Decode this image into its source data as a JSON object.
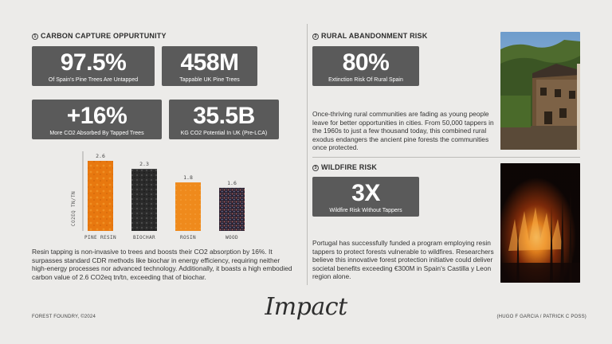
{
  "sections": {
    "carbon": {
      "number": "1",
      "title": "CARBON CAPTURE OPPURTUNITY"
    },
    "rural": {
      "number": "2",
      "title": "RURAL ABANDONMENT RISK"
    },
    "wildfire": {
      "number": "3",
      "title": "WILDFIRE RISK"
    }
  },
  "stats": {
    "untapped": {
      "value": "97.5%",
      "label": "Of Spain's Pine Trees Are Untapped"
    },
    "tappable": {
      "value": "458M",
      "label": "Tappable UK Pine Trees"
    },
    "co2_absorbed": {
      "value": "+16%",
      "label": "More CO2 Absorbed By Tapped Trees"
    },
    "co2_potential": {
      "value": "35.5B",
      "label": "KG CO2 Potential In UK (Pre-LCA)"
    },
    "extinction": {
      "value": "80%",
      "label": "Extinction Risk Of Rural Spain"
    },
    "wildfire": {
      "value": "3X",
      "label": "Wildfire Risk Without Tappers"
    }
  },
  "chart_data": {
    "type": "bar",
    "categories": [
      "PINE RESIN",
      "BIOCHAR",
      "ROSIN",
      "WOOD"
    ],
    "values": [
      2.6,
      2.3,
      1.8,
      1.6
    ],
    "value_labels": [
      "2.6",
      "2.3",
      "1.8",
      "1.6"
    ],
    "ylabel": "CO2EQ TN/TN",
    "xlabel": "",
    "grid": false,
    "colors": [
      "#e8780f",
      "#2d2d2d",
      "#ef8a1c",
      "#3a2a3a"
    ]
  },
  "paragraphs": {
    "carbon": "Resin tapping is non-invasive to trees and boosts their CO2 absorption by 16%. It surpasses standard CDR methods like biochar in energy efficiency, requiring neither high-energy processes nor advanced technology. Additionally, it boasts a high embodied carbon value of 2.6 CO2eq tn/tn, exceeding that of biochar.",
    "rural": "Once-thriving rural communities are fading as young people leave for better opportunities in cities. From 50,000 tappers in the 1960s to just a few thousand today, this combined rural exodus endangers the ancient pine forests the communities once protected.",
    "wildfire": "Portugal has successfully funded a program employing resin tappers to protect forests vulnerable to wildfires. Researchers believe this innovative forest protection initiative could deliver societal benefits exceeding €300M in Spain's Castilla y Leon region alone."
  },
  "footer": {
    "left": "FOREST FOUNDRY, ©2024",
    "center": "Impact",
    "right": "(HUGO F GARCIA  /  PATRICK C POSS)"
  },
  "colors": {
    "background": "#ecebe9",
    "stat_box": "#5a5a5a",
    "resin_orange": "#e8780f"
  }
}
